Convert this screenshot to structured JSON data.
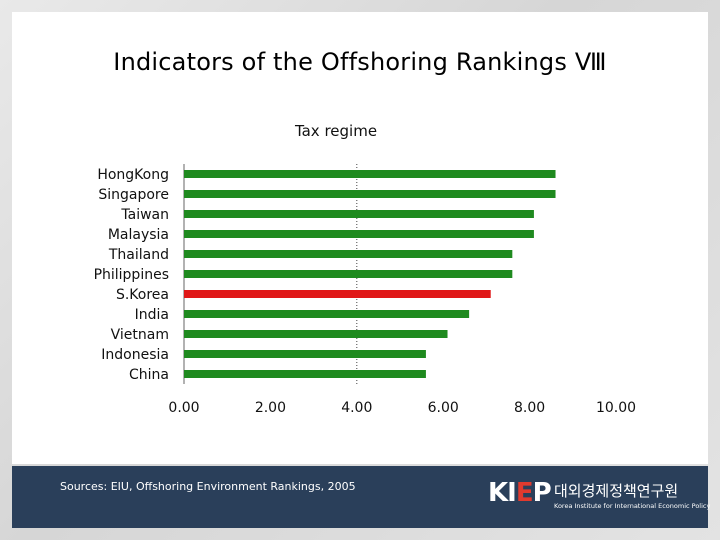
{
  "slide": {
    "title": "Indicators of the Offshoring Rankings Ⅷ"
  },
  "chart_data": {
    "type": "bar",
    "orientation": "horizontal",
    "title": "Tax regime",
    "categories": [
      "HongKong",
      "Singapore",
      "Taiwan",
      "Malaysia",
      "Thailand",
      "Philippines",
      "S.Korea",
      "India",
      "Vietnam",
      "Indonesia",
      "China"
    ],
    "values": [
      8.6,
      8.6,
      8.1,
      8.1,
      7.6,
      7.6,
      7.1,
      6.6,
      6.1,
      5.6,
      5.6
    ],
    "highlight": "S.Korea",
    "xlim": [
      0,
      10
    ],
    "xticks": [
      "0.00",
      "2.00",
      "4.00",
      "6.00",
      "8.00",
      "10.00"
    ],
    "reference_line": 4,
    "bar_color": "#1f8a1f",
    "highlight_color": "#e01818"
  },
  "footer": {
    "source": "Sources: EIU, Offshoring Environment Rankings, 2005",
    "logo_mark_k": "KI",
    "logo_mark_e": "E",
    "logo_mark_p": "P",
    "logo_korean": "대외경제정책연구원",
    "logo_english": "Korea Institute for International Economic Policy"
  }
}
